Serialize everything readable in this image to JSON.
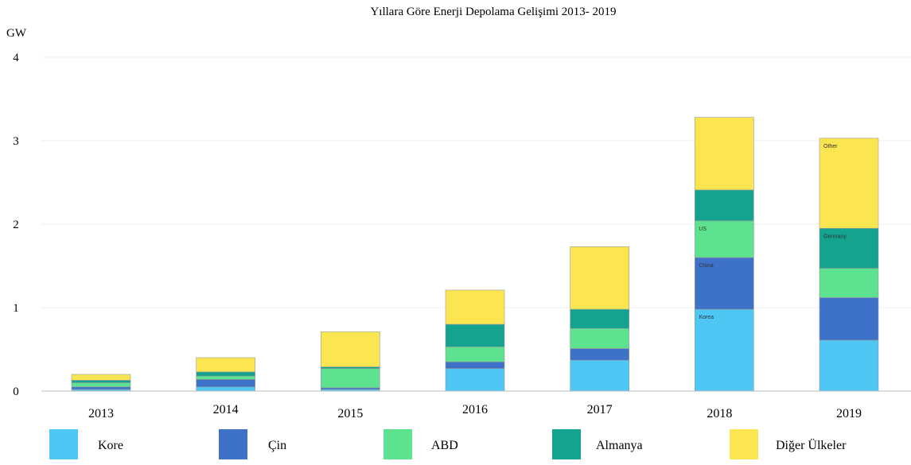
{
  "chart_data": {
    "type": "bar",
    "stacked": true,
    "title": "Yıllara Göre Enerji Depolama Gelişimi 2013- 2019",
    "ylabel": "GW",
    "xlabel": "",
    "ylim": [
      0,
      4
    ],
    "yticks": [
      0,
      1,
      2,
      3,
      4
    ],
    "grid": true,
    "legend_position": "bottom",
    "categories": [
      "2013",
      "2014",
      "2015",
      "2016",
      "2017",
      "2018",
      "2019"
    ],
    "series": [
      {
        "name": "Kore",
        "color": "#4fc7f5",
        "values": [
          0.02,
          0.05,
          0.02,
          0.27,
          0.37,
          0.98,
          0.61
        ]
      },
      {
        "name": "Çin",
        "color": "#3e72c8",
        "values": [
          0.03,
          0.09,
          0.02,
          0.08,
          0.14,
          0.62,
          0.51
        ]
      },
      {
        "name": "ABD",
        "color": "#5de38f",
        "values": [
          0.05,
          0.04,
          0.23,
          0.18,
          0.24,
          0.44,
          0.35
        ]
      },
      {
        "name": "Almanya",
        "color": "#14a38f",
        "values": [
          0.03,
          0.05,
          0.02,
          0.27,
          0.23,
          0.37,
          0.48
        ]
      },
      {
        "name": "Diğer Ülkeler",
        "color": "#fbe651",
        "values": [
          0.07,
          0.17,
          0.42,
          0.41,
          0.75,
          0.87,
          1.08
        ]
      }
    ],
    "bar_annotations": [
      {
        "category": "2018",
        "series": "Kore",
        "text": "Korea"
      },
      {
        "category": "2018",
        "series": "Çin",
        "text": "China"
      },
      {
        "category": "2018",
        "series": "ABD",
        "text": "US"
      },
      {
        "category": "2019",
        "series": "Almanya",
        "text": "Germany"
      },
      {
        "category": "2019",
        "series": "Diğer Ülkeler",
        "text": "Other"
      }
    ]
  }
}
